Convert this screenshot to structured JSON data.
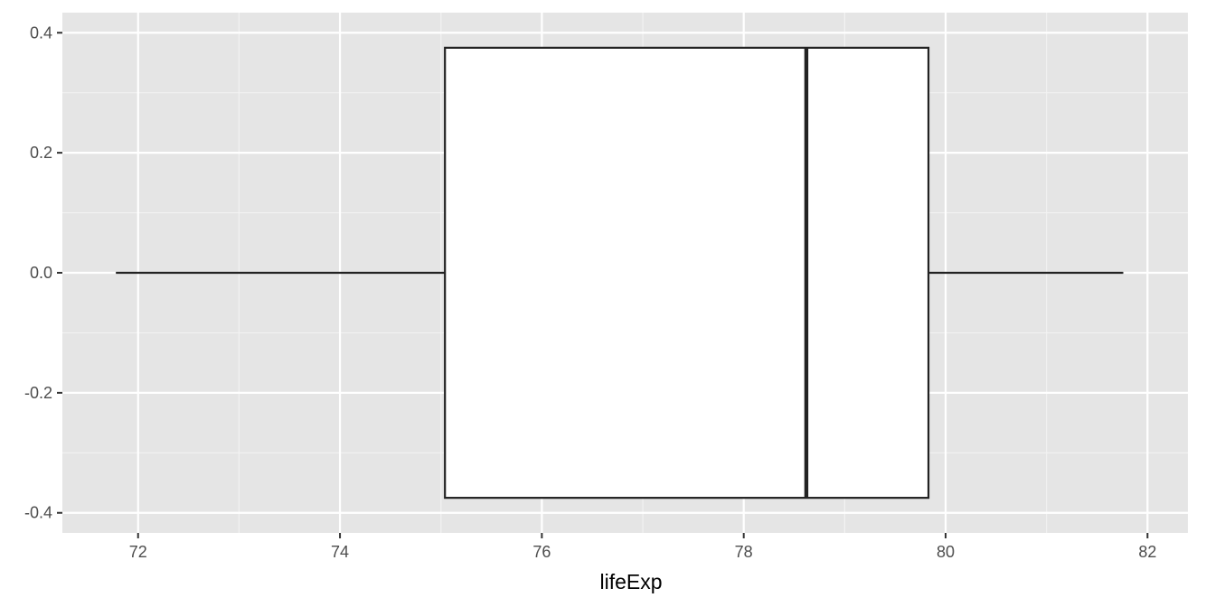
{
  "chart_data": {
    "type": "boxplot",
    "orientation": "horizontal",
    "title": "",
    "xlabel": "lifeExp",
    "ylabel": "",
    "xlim": [
      71.25,
      82.4
    ],
    "ylim": [
      -0.4,
      0.4
    ],
    "x_ticks": [
      72,
      74,
      76,
      78,
      80,
      82
    ],
    "x_tick_labels": [
      "72",
      "74",
      "76",
      "78",
      "80",
      "82"
    ],
    "y_ticks": [
      0.4,
      0.2,
      0.0,
      -0.2,
      -0.4
    ],
    "y_tick_labels": [
      "0.4",
      "0.2",
      "0.0",
      "-0.2",
      "-0.4"
    ],
    "box": {
      "min": 71.78,
      "q1": 75.04,
      "median": 78.62,
      "q3": 79.83,
      "max": 81.76,
      "y_center": 0.0,
      "y_half_height": 0.375
    },
    "grid": true,
    "legend": "none",
    "colors": {
      "panel_background": "#e5e5e5",
      "grid_major": "#ffffff",
      "grid_minor": "#f2f2f2",
      "box_fill": "#ffffff",
      "box_stroke": "#222222"
    }
  }
}
